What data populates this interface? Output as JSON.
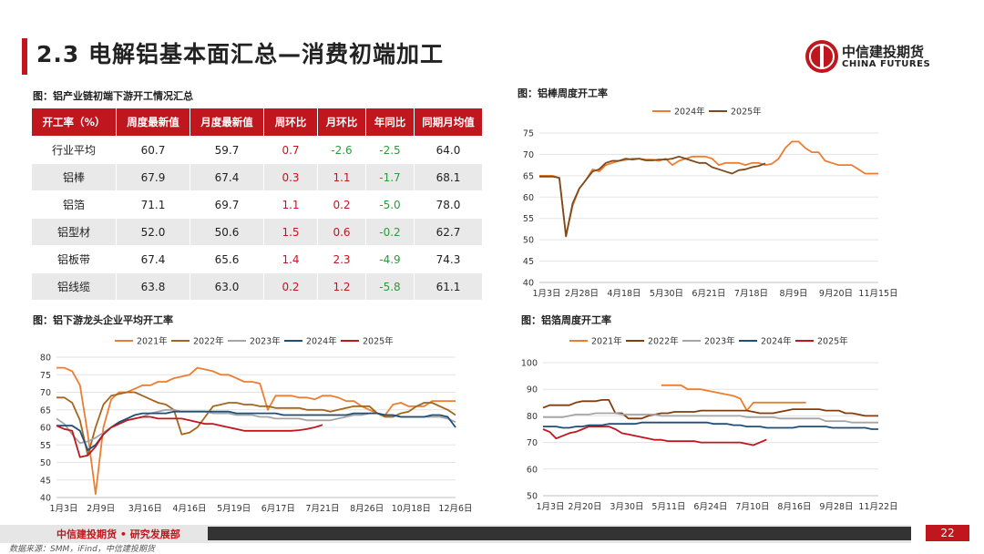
{
  "title": "2.3 电解铝基本面汇总—消费初端加工",
  "logo": {
    "cn": "中信建投期货",
    "en": "CHINA FUTURES"
  },
  "table_section": {
    "caption": "图：铝产业链初端下游开工情况汇总",
    "headers": [
      "开工率（%）",
      "周度最新值",
      "月度最新值",
      "周环比",
      "月环比",
      "年同比",
      "同期月均值"
    ],
    "rows": [
      [
        "行业平均",
        "60.7",
        "59.7",
        "0.7",
        "-2.6",
        "-2.5",
        "64.0"
      ],
      [
        "铝棒",
        "67.9",
        "67.4",
        "0.3",
        "1.1",
        "-1.7",
        "68.1"
      ],
      [
        "铝箔",
        "71.1",
        "69.7",
        "1.1",
        "0.2",
        "-5.0",
        "78.0"
      ],
      [
        "铝型材",
        "52.0",
        "50.6",
        "1.5",
        "0.6",
        "-0.2",
        "62.7"
      ],
      [
        "铝板带",
        "67.4",
        "65.6",
        "1.4",
        "2.3",
        "-4.9",
        "74.3"
      ],
      [
        "铝线缆",
        "63.8",
        "63.0",
        "0.2",
        "1.2",
        "-5.8",
        "61.1"
      ]
    ]
  },
  "colors": {
    "brand_red": "#c0161e",
    "up": "#c0161e",
    "down": "#2e9a3a"
  },
  "chart_data": [
    {
      "type": "line",
      "caption": "图：铝棒周度开工率",
      "x_ticks": [
        "1月3日",
        "2月28日",
        "4月18日",
        "5月30日",
        "6月21日",
        "7月18日",
        "8月9日",
        "9月20日",
        "11月15日"
      ],
      "ylim": [
        40,
        75
      ],
      "yticks": [
        40,
        45,
        50,
        55,
        60,
        65,
        70,
        75
      ],
      "grid": true,
      "legend": "top",
      "x_count": 52,
      "series": [
        {
          "name": "2024年",
          "color": "#ed7d31",
          "values": [
            65,
            65,
            65,
            64.5,
            51,
            58,
            62,
            64,
            66.5,
            66,
            67.5,
            68,
            68.5,
            68.7,
            69,
            69,
            68.8,
            68.8,
            68.5,
            69,
            67.5,
            68.5,
            69,
            69.5,
            69.5,
            69.5,
            69,
            67.5,
            68,
            68,
            68,
            67.5,
            68,
            68,
            67.5,
            67.8,
            69,
            71.5,
            73,
            73,
            71.5,
            70.5,
            70.5,
            68.5,
            68,
            67.5,
            67.5,
            67.5,
            66.5,
            65.5,
            65.5,
            65.5
          ]
        },
        {
          "name": "2025年",
          "color": "#7b4a1e",
          "values": [
            64.8,
            64.8,
            64.8,
            64.5,
            50.8,
            58.5,
            62,
            64,
            66,
            66.5,
            68,
            68.5,
            68.5,
            69,
            68.8,
            69,
            68.6,
            68.6,
            68.8,
            68.8,
            69,
            69.5,
            69,
            68.5,
            68,
            68,
            67,
            66.5,
            66,
            65.5,
            66.3,
            66.5,
            67,
            67.3,
            67.9
          ]
        }
      ]
    },
    {
      "type": "line",
      "caption": "图：铝下游龙头企业平均开工率",
      "x_ticks": [
        "1月3日",
        "2月9日",
        "3月16日",
        "4月16日",
        "5月19日",
        "6月17日",
        "7月21日",
        "8月26日",
        "10月18日",
        "12月6日"
      ],
      "ylim": [
        40,
        80
      ],
      "yticks": [
        40,
        45,
        50,
        55,
        60,
        65,
        70,
        75,
        80
      ],
      "grid": true,
      "legend": "top",
      "x_count": 52,
      "series": [
        {
          "name": "2021年",
          "color": "#ed7d31",
          "values": [
            77,
            77,
            76,
            72,
            58,
            41,
            60,
            68,
            70,
            70,
            71,
            72,
            72,
            73,
            73,
            74,
            74.5,
            75,
            77,
            76.5,
            76,
            75,
            75,
            74,
            73,
            73,
            72.5,
            65,
            69,
            69,
            69,
            68.5,
            68.5,
            68,
            69,
            69,
            68.5,
            67.5,
            67.5,
            66,
            65,
            64,
            63.5,
            66.5,
            67,
            66,
            66,
            66,
            67.5,
            67.5,
            67.5,
            67.5
          ]
        },
        {
          "name": "2022年",
          "color": "#a5661c",
          "values": [
            68.5,
            68.5,
            67,
            62,
            52,
            60,
            66.5,
            69,
            69.5,
            70,
            70,
            69,
            68,
            67,
            66.5,
            65,
            58,
            58.5,
            60,
            63,
            66,
            66.5,
            67,
            67,
            66.5,
            66.5,
            66,
            66,
            65.5,
            65.5,
            65.5,
            65.5,
            65,
            65,
            65,
            64.5,
            65,
            65.5,
            66,
            66,
            66,
            64,
            63,
            63,
            64,
            64.5,
            66,
            67,
            67,
            66,
            65,
            63.5
          ]
        },
        {
          "name": "2023年",
          "color": "#a5a5a5",
          "values": [
            62.5,
            61,
            58,
            55.5,
            56,
            57,
            58.5,
            60,
            61,
            62,
            62.5,
            63,
            64,
            64.5,
            65,
            65,
            64.5,
            64.5,
            64.5,
            64.5,
            64,
            64,
            64,
            63.5,
            63.5,
            63.5,
            63,
            63,
            62.5,
            62.5,
            62.5,
            62.5,
            62,
            62,
            62,
            62,
            62.5,
            63,
            63.5,
            63.5,
            64,
            64,
            63.5,
            63.5,
            63,
            63,
            63,
            63,
            63,
            63,
            62.5,
            61.5
          ]
        },
        {
          "name": "2024年",
          "color": "#1f4e79",
          "values": [
            60.5,
            60.5,
            60.5,
            59,
            53.5,
            55,
            58,
            60,
            61.5,
            62.5,
            63.5,
            64,
            64,
            64,
            64,
            64.5,
            64.5,
            64.5,
            64.5,
            64.5,
            64.5,
            64.5,
            64.5,
            64,
            64,
            64,
            64,
            64,
            64,
            63.5,
            63.5,
            63.5,
            63.5,
            63.5,
            63.5,
            63.5,
            63.5,
            63.5,
            64,
            64,
            64,
            64,
            63.5,
            63.5,
            63,
            63,
            63,
            63,
            63.5,
            63.5,
            63,
            60
          ]
        },
        {
          "name": "2025年",
          "color": "#c0161e",
          "values": [
            60.5,
            59.5,
            59,
            51.5,
            52,
            54.5,
            58,
            60,
            61,
            62,
            62.5,
            63,
            63,
            62.5,
            62.5,
            62.5,
            62.5,
            62,
            61.5,
            61,
            61,
            60.5,
            60,
            59.5,
            59,
            59,
            59,
            59,
            59,
            59,
            59,
            59.2,
            59.5,
            60,
            60.7
          ]
        }
      ]
    },
    {
      "type": "line",
      "caption": "图：铝箔周度开工率",
      "x_ticks": [
        "1月3日",
        "2月20日",
        "3月30日",
        "5月11日",
        "6月24日",
        "7月10日",
        "8月16日",
        "9月28日",
        "11月22日"
      ],
      "ylim": [
        50,
        100
      ],
      "yticks": [
        50,
        60,
        70,
        80,
        90,
        100
      ],
      "grid": true,
      "legend": "top",
      "x_count": 52,
      "series": [
        {
          "name": "2021年",
          "color": "#ed7d31",
          "values": [
            null,
            null,
            null,
            null,
            null,
            null,
            null,
            null,
            null,
            null,
            null,
            null,
            null,
            null,
            null,
            null,
            null,
            null,
            91.5,
            91.5,
            91.5,
            91.5,
            90,
            90,
            90,
            89.5,
            89,
            88.5,
            88,
            87.5,
            86.5,
            82,
            85,
            85,
            85,
            85,
            85,
            85,
            85,
            85,
            85,
            null,
            null,
            null,
            null,
            null,
            null,
            null,
            null,
            null,
            null,
            null
          ]
        },
        {
          "name": "2022年",
          "color": "#843c0c",
          "values": [
            83,
            84,
            84,
            84,
            84,
            85,
            85.5,
            85.5,
            85.5,
            86,
            86,
            81,
            81,
            79,
            79,
            79,
            80,
            80.5,
            81,
            81,
            81.5,
            81.5,
            81.5,
            81.5,
            82,
            82,
            82,
            82,
            82,
            82,
            82,
            82,
            81.5,
            81,
            81,
            81,
            81.5,
            82,
            82.5,
            82.5,
            82.5,
            82.5,
            82.5,
            82,
            82,
            82,
            81,
            81,
            80.5,
            80,
            80,
            80
          ]
        },
        {
          "name": "2023年",
          "color": "#a5a5a5",
          "values": [
            79.5,
            79.5,
            79.5,
            79.5,
            80,
            80.5,
            80.5,
            80.5,
            81,
            81,
            81,
            81,
            80.5,
            80.5,
            80.5,
            80.5,
            80.5,
            80.5,
            80,
            80,
            80,
            80,
            80,
            80,
            80,
            80,
            80,
            80,
            80,
            80,
            80,
            79.5,
            79.5,
            79.5,
            79.5,
            79.5,
            79,
            79,
            79,
            79,
            79,
            79,
            79,
            78,
            78,
            78,
            78,
            77.5,
            77.5,
            77.5,
            77.5,
            77.5
          ]
        },
        {
          "name": "2024年",
          "color": "#1f4e79",
          "values": [
            76,
            76,
            76,
            75.5,
            75.5,
            76,
            76,
            76.5,
            76.5,
            76.5,
            77,
            77,
            77,
            77,
            77,
            77.5,
            77.5,
            77.5,
            77.5,
            77.5,
            77.5,
            77.5,
            77.5,
            77.5,
            77.5,
            77.5,
            77,
            77,
            77,
            76.5,
            76.5,
            76,
            76,
            76,
            75.5,
            75.5,
            75.5,
            75.5,
            75.5,
            76,
            76,
            76,
            76,
            76,
            75.5,
            75.5,
            75.5,
            75.5,
            75.5,
            75.5,
            75,
            75
          ]
        },
        {
          "name": "2025年",
          "color": "#c0161e",
          "values": [
            75,
            74,
            71.5,
            72.5,
            73.5,
            74,
            75,
            76,
            76,
            76,
            76,
            75,
            73.5,
            73,
            72.5,
            72,
            71.5,
            71,
            71,
            70.5,
            70.5,
            70.5,
            70.5,
            70.5,
            70,
            70,
            70,
            70,
            70,
            70,
            70,
            69.5,
            69,
            70,
            71.1
          ]
        }
      ]
    }
  ],
  "footer": {
    "label": "中信建投期货 • 研究发展部",
    "page": "22",
    "source": "数据来源：SMM，iFind，中信建投期货"
  }
}
